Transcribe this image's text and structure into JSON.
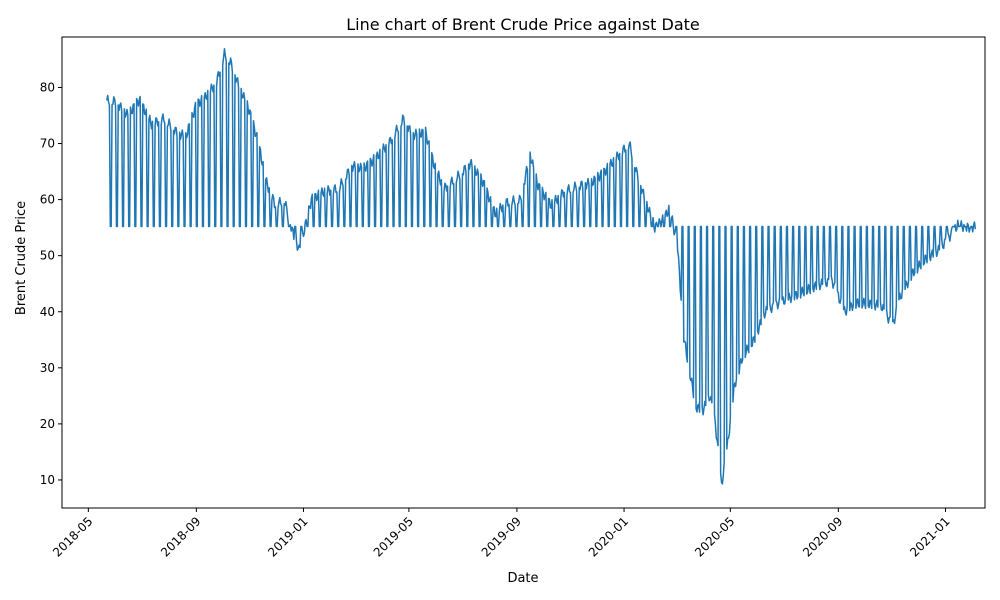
{
  "chart_data": {
    "type": "line",
    "title": "Line chart of Brent Crude Price against Date",
    "xlabel": "Date",
    "ylabel": "Brent Crude Price",
    "xlim": [
      "2018-04-01",
      "2021-02-15"
    ],
    "ylim": [
      5,
      89
    ],
    "y_ticks": [
      10,
      20,
      30,
      40,
      50,
      60,
      70,
      80
    ],
    "x_ticks": [
      "2018-05",
      "2018-09",
      "2019-01",
      "2019-05",
      "2019-09",
      "2020-01",
      "2020-05",
      "2020-09",
      "2021-01"
    ],
    "x_tick_dates": [
      "2018-05-01",
      "2018-09-01",
      "2019-01-01",
      "2019-05-01",
      "2019-09-01",
      "2020-01-01",
      "2020-05-01",
      "2020-09-01",
      "2021-01-01"
    ],
    "grid": false,
    "series": [
      {
        "color": "#1f77b4",
        "fill_value": 55.2,
        "points": [
          [
            "2018-05-22",
            77.7
          ],
          [
            "2018-06-01",
            77.5
          ],
          [
            "2018-06-15",
            75.0
          ],
          [
            "2018-06-28",
            77.8
          ],
          [
            "2018-07-12",
            73.5
          ],
          [
            "2018-07-26",
            74.5
          ],
          [
            "2018-08-10",
            72.0
          ],
          [
            "2018-08-20",
            71.2
          ],
          [
            "2018-09-01",
            77.0
          ],
          [
            "2018-09-10",
            78.0
          ],
          [
            "2018-09-24",
            81.0
          ],
          [
            "2018-10-03",
            86.0
          ],
          [
            "2018-10-10",
            84.5
          ],
          [
            "2018-10-20",
            80.0
          ],
          [
            "2018-10-31",
            76.0
          ],
          [
            "2018-11-10",
            70.5
          ],
          [
            "2018-11-20",
            63.0
          ],
          [
            "2018-11-30",
            59.0
          ],
          [
            "2018-12-10",
            60.0
          ],
          [
            "2018-12-20",
            54.0
          ],
          [
            "2018-12-27",
            51.0
          ],
          [
            "2019-01-01",
            54.0
          ],
          [
            "2019-01-10",
            60.0
          ],
          [
            "2019-01-25",
            61.5
          ],
          [
            "2019-02-10",
            62.0
          ],
          [
            "2019-02-25",
            66.0
          ],
          [
            "2019-03-10",
            65.5
          ],
          [
            "2019-03-25",
            67.5
          ],
          [
            "2019-04-10",
            70.5
          ],
          [
            "2019-04-25",
            74.5
          ],
          [
            "2019-05-05",
            71.5
          ],
          [
            "2019-05-20",
            72.0
          ],
          [
            "2019-05-30",
            66.0
          ],
          [
            "2019-06-10",
            62.0
          ],
          [
            "2019-06-25",
            64.0
          ],
          [
            "2019-07-10",
            66.5
          ],
          [
            "2019-07-25",
            63.0
          ],
          [
            "2019-08-07",
            57.5
          ],
          [
            "2019-08-20",
            59.5
          ],
          [
            "2019-09-05",
            60.0
          ],
          [
            "2019-09-16",
            68.0
          ],
          [
            "2019-09-25",
            62.5
          ],
          [
            "2019-10-10",
            59.0
          ],
          [
            "2019-10-25",
            61.5
          ],
          [
            "2019-11-10",
            62.5
          ],
          [
            "2019-11-25",
            63.0
          ],
          [
            "2019-12-10",
            65.0
          ],
          [
            "2019-12-26",
            68.0
          ],
          [
            "2020-01-07",
            70.0
          ],
          [
            "2020-01-15",
            65.0
          ],
          [
            "2020-01-25",
            60.0
          ],
          [
            "2020-02-05",
            55.0
          ],
          [
            "2020-02-15",
            56.5
          ],
          [
            "2020-02-22",
            58.5
          ],
          [
            "2020-03-02",
            51.5
          ],
          [
            "2020-03-09",
            35.5
          ],
          [
            "2020-03-16",
            29.0
          ],
          [
            "2020-03-23",
            23.0
          ],
          [
            "2020-03-31",
            22.5
          ],
          [
            "2020-04-08",
            25.0
          ],
          [
            "2020-04-14",
            20.0
          ],
          [
            "2020-04-21",
            9.0
          ],
          [
            "2020-04-28",
            16.5
          ],
          [
            "2020-05-06",
            27.0
          ],
          [
            "2020-05-15",
            32.0
          ],
          [
            "2020-05-28",
            35.0
          ],
          [
            "2020-06-10",
            40.0
          ],
          [
            "2020-06-25",
            41.5
          ],
          [
            "2020-07-15",
            43.0
          ],
          [
            "2020-08-05",
            44.5
          ],
          [
            "2020-08-25",
            45.5
          ],
          [
            "2020-09-08",
            40.0
          ],
          [
            "2020-09-20",
            41.5
          ],
          [
            "2020-10-05",
            41.5
          ],
          [
            "2020-10-20",
            41.0
          ],
          [
            "2020-11-02",
            37.5
          ],
          [
            "2020-11-10",
            42.5
          ],
          [
            "2020-11-25",
            47.0
          ],
          [
            "2020-12-10",
            49.5
          ],
          [
            "2020-12-25",
            51.0
          ],
          [
            "2021-01-06",
            53.5
          ],
          [
            "2021-01-15",
            55.5
          ],
          [
            "2021-01-25",
            55.0
          ],
          [
            "2021-02-04",
            55.2
          ]
        ]
      }
    ]
  }
}
